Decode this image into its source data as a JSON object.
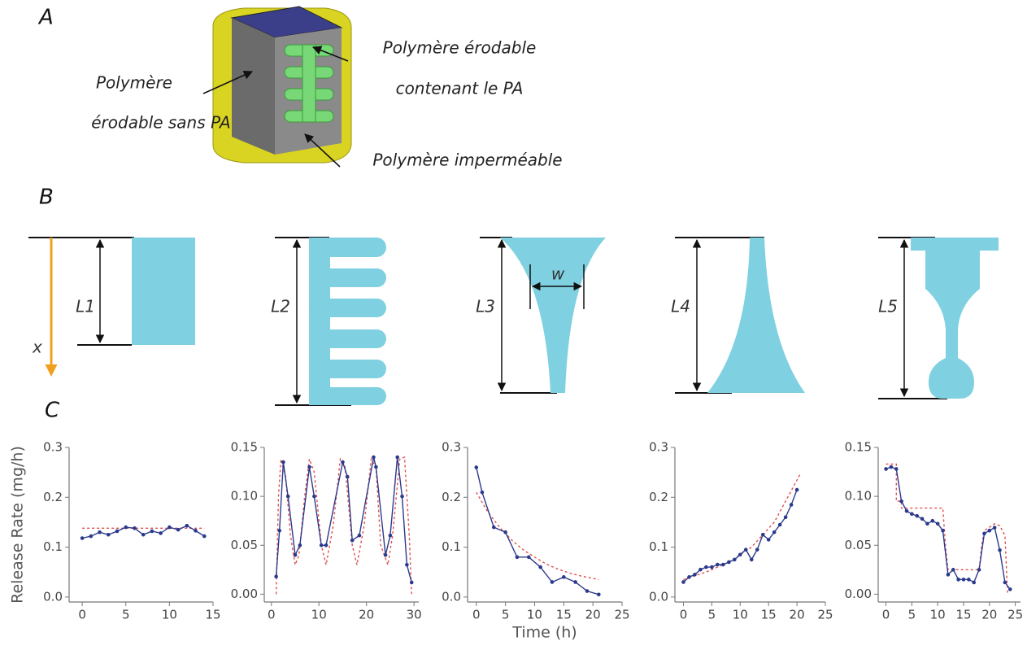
{
  "panel_labels": [
    "A",
    "B",
    "C"
  ],
  "diagram_a": {
    "left_label": [
      "Polymère",
      "érodable sans PA"
    ],
    "right_label": [
      "Polymère érodable",
      "contenant le PA"
    ],
    "bottom_label": "Polymère imperméable"
  },
  "diagram_b": {
    "lengths": [
      "L1",
      "L2",
      "L3",
      "L4",
      "L5"
    ],
    "axis": "x",
    "width": "w"
  },
  "chart_data": [
    {
      "type": "line",
      "ylabel": "Release Rate (mg/h)",
      "xlim": [
        -1.5,
        15
      ],
      "xticks": [
        0,
        5,
        10,
        15
      ],
      "ylim": [
        -0.01,
        0.3
      ],
      "yticks": [
        {
          "value": 0,
          "label": "0.0"
        },
        0.1,
        0.2,
        0.3
      ],
      "series": [
        {
          "color": "#2b3a8c",
          "marker": true,
          "line_style": "solid",
          "x": [
            0,
            1,
            2,
            3,
            4,
            5,
            6,
            7,
            8,
            9,
            10,
            11,
            12,
            13,
            14
          ],
          "values": [
            0.118,
            0.122,
            0.13,
            0.125,
            0.132,
            0.14,
            0.138,
            0.125,
            0.132,
            0.128,
            0.14,
            0.135,
            0.143,
            0.133,
            0.122
          ]
        },
        {
          "color": "#e05050",
          "marker": false,
          "line_style": "dashed",
          "x": [
            0,
            14
          ],
          "values": [
            0.138,
            0.138
          ]
        }
      ]
    },
    {
      "type": "line",
      "xlim": [
        -1.5,
        31
      ],
      "xticks": [
        0,
        10,
        20,
        30
      ],
      "ylim": [
        -0.008,
        0.15
      ],
      "yticks": [
        {
          "value": 0,
          "label": "0.00"
        },
        0.05,
        {
          "value": 0.1,
          "label": "0.10"
        },
        0.15
      ],
      "series": [
        {
          "color": "#2b3a8c",
          "marker": true,
          "line_style": "solid",
          "x": [
            1,
            1.7,
            2.5,
            3.5,
            5,
            6,
            8,
            9,
            10.5,
            11.5,
            15,
            16,
            17,
            18.5,
            21.5,
            22,
            24,
            25,
            26.5,
            27.5,
            28.5,
            29.5
          ],
          "values": [
            0.018,
            0.065,
            0.135,
            0.1,
            0.04,
            0.05,
            0.13,
            0.1,
            0.05,
            0.05,
            0.135,
            0.12,
            0.055,
            0.06,
            0.14,
            0.13,
            0.04,
            0.06,
            0.14,
            0.1,
            0.03,
            0.012
          ]
        },
        {
          "color": "#e05050",
          "marker": false,
          "line_style": "dashed",
          "x": [
            1,
            1.5,
            2,
            3,
            4,
            5,
            5.8,
            7,
            8,
            9,
            10.5,
            11.5,
            13,
            14.5,
            15.5,
            17,
            18,
            19.5,
            21,
            22,
            23,
            24.5,
            25.5,
            27,
            28,
            29,
            29.5
          ],
          "values": [
            0.0,
            0.1,
            0.138,
            0.12,
            0.06,
            0.03,
            0.04,
            0.1,
            0.138,
            0.125,
            0.05,
            0.03,
            0.07,
            0.138,
            0.13,
            0.05,
            0.03,
            0.07,
            0.138,
            0.13,
            0.05,
            0.03,
            0.06,
            0.138,
            0.14,
            0.06,
            0.0
          ]
        }
      ]
    },
    {
      "type": "line",
      "xlabel": "Time (h)",
      "xlim": [
        -1.5,
        25
      ],
      "xticks": [
        0,
        5,
        10,
        15,
        20,
        25
      ],
      "ylim": [
        -0.01,
        0.3
      ],
      "yticks": [
        {
          "value": 0,
          "label": "0.0"
        },
        0.1,
        0.2,
        0.3
      ],
      "series": [
        {
          "color": "#2b3a8c",
          "marker": true,
          "line_style": "solid",
          "x": [
            0,
            1,
            3,
            5,
            7,
            9,
            11,
            13,
            15,
            17,
            19,
            21
          ],
          "values": [
            0.26,
            0.21,
            0.14,
            0.13,
            0.08,
            0.08,
            0.06,
            0.03,
            0.04,
            0.03,
            0.012,
            0.005
          ]
        },
        {
          "color": "#e05050",
          "marker": false,
          "line_style": "dashed",
          "x": [
            0,
            2,
            4,
            6,
            8,
            10,
            12,
            14,
            16,
            18,
            21
          ],
          "values": [
            0.21,
            0.17,
            0.14,
            0.115,
            0.095,
            0.08,
            0.066,
            0.056,
            0.048,
            0.042,
            0.035
          ]
        }
      ]
    },
    {
      "type": "line",
      "xlim": [
        -1.5,
        25
      ],
      "xticks": [
        0,
        5,
        10,
        15,
        20,
        25
      ],
      "ylim": [
        -0.01,
        0.3
      ],
      "yticks": [
        {
          "value": 0,
          "label": "0.0"
        },
        0.1,
        0.2,
        0.3
      ],
      "series": [
        {
          "color": "#2b3a8c",
          "marker": true,
          "line_style": "solid",
          "x": [
            0,
            1,
            2,
            3,
            4,
            5,
            6,
            7,
            8,
            9,
            10,
            11,
            12,
            13,
            14,
            15,
            16,
            17,
            18,
            19,
            20
          ],
          "values": [
            0.03,
            0.04,
            0.045,
            0.055,
            0.06,
            0.06,
            0.065,
            0.065,
            0.07,
            0.075,
            0.085,
            0.095,
            0.075,
            0.095,
            0.125,
            0.115,
            0.13,
            0.145,
            0.16,
            0.185,
            0.215
          ]
        },
        {
          "color": "#e05050",
          "marker": false,
          "line_style": "dashed",
          "x": [
            0,
            4,
            8,
            12,
            16,
            20.5
          ],
          "values": [
            0.035,
            0.05,
            0.07,
            0.1,
            0.15,
            0.245
          ]
        }
      ]
    },
    {
      "type": "line",
      "xlim": [
        -1.5,
        26
      ],
      "xticks": [
        0,
        5,
        10,
        15,
        20,
        25
      ],
      "ylim": [
        -0.008,
        0.15
      ],
      "yticks": [
        {
          "value": 0,
          "label": "0.00"
        },
        0.05,
        {
          "value": 0.1,
          "label": "0.10"
        },
        0.15
      ],
      "series": [
        {
          "color": "#2b3a8c",
          "marker": true,
          "line_style": "solid",
          "x": [
            0,
            1,
            2,
            3,
            4,
            5,
            6,
            7,
            8,
            9,
            10,
            11,
            12,
            13,
            14,
            15,
            16,
            17,
            18,
            19,
            20,
            21,
            22,
            23,
            24
          ],
          "values": [
            0.128,
            0.13,
            0.128,
            0.095,
            0.085,
            0.082,
            0.08,
            0.077,
            0.072,
            0.075,
            0.072,
            0.065,
            0.02,
            0.025,
            0.015,
            0.015,
            0.015,
            0.012,
            0.025,
            0.062,
            0.065,
            0.068,
            0.045,
            0.012,
            0.005
          ]
        },
        {
          "color": "#e05050",
          "marker": false,
          "line_style": "dashed",
          "x": [
            0,
            2,
            2,
            3,
            3,
            11,
            11.5,
            12,
            12.5,
            18,
            18.5,
            19,
            21,
            22,
            23,
            23.5
          ],
          "values": [
            0.133,
            0.133,
            0.095,
            0.095,
            0.088,
            0.088,
            0.05,
            0.025,
            0.025,
            0.025,
            0.05,
            0.065,
            0.072,
            0.07,
            0.06,
            0.0
          ]
        }
      ]
    }
  ]
}
